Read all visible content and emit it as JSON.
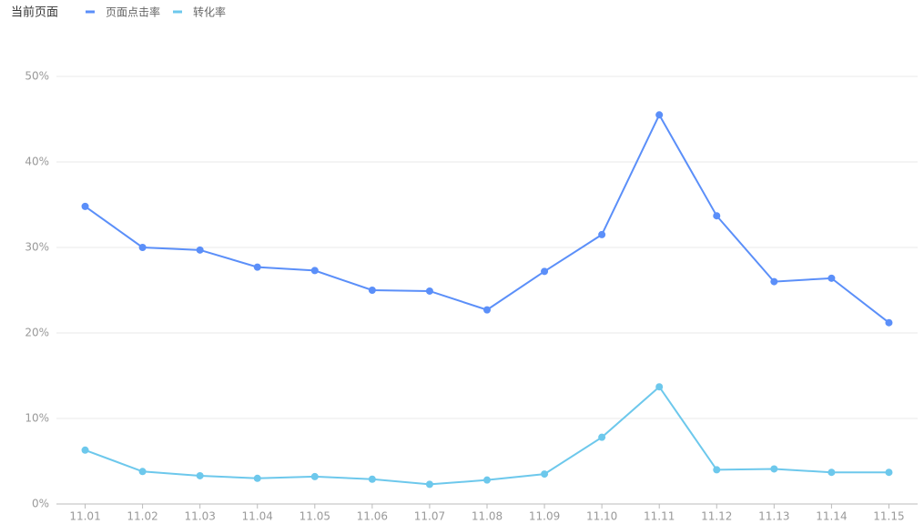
{
  "chart_data": {
    "type": "line",
    "title": "当前页面",
    "categories": [
      "11.01",
      "11.02",
      "11.03",
      "11.04",
      "11.05",
      "11.06",
      "11.07",
      "11.08",
      "11.09",
      "11.10",
      "11.11",
      "11.12",
      "11.13",
      "11.14",
      "11.15"
    ],
    "series": [
      {
        "name": "页面点击率",
        "color": "#5b8ff9",
        "values": [
          34.8,
          30.0,
          29.7,
          27.7,
          27.3,
          25.0,
          24.9,
          22.7,
          27.2,
          31.5,
          45.5,
          33.7,
          26.0,
          26.4,
          21.2
        ]
      },
      {
        "name": "转化率",
        "color": "#6dc8ec",
        "values": [
          6.3,
          3.8,
          3.3,
          3.0,
          3.2,
          2.9,
          2.3,
          2.8,
          3.5,
          7.8,
          13.7,
          4.0,
          4.1,
          3.7,
          3.7
        ]
      }
    ],
    "ylim": [
      0,
      50
    ],
    "yticks": [
      {
        "value": 0,
        "label": "0%"
      },
      {
        "value": 10,
        "label": "10%"
      },
      {
        "value": 20,
        "label": "20%"
      },
      {
        "value": 30,
        "label": "30%"
      },
      {
        "value": 40,
        "label": "40%"
      },
      {
        "value": 50,
        "label": "50%"
      }
    ],
    "grid": true
  }
}
